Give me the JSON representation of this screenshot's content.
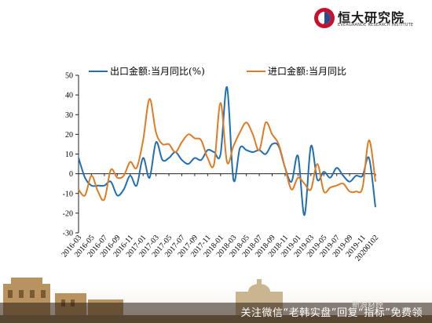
{
  "logo": {
    "name_cn": "恒大研究院",
    "name_en": "EVERGRANDE RESEARCH INSTITUTE"
  },
  "banner": {
    "text": "关注微信“老韩实盘”回复“指标”免费领",
    "watermark": "新浪财经"
  },
  "colors": {
    "export": "#1f6fb2",
    "import": "#e07b22",
    "axis": "#222222"
  },
  "chart_data": {
    "type": "line",
    "legend_position": "top",
    "grid": false,
    "ylim": [
      -30,
      50
    ],
    "yticks": [
      -30,
      -20,
      -10,
      0,
      10,
      20,
      30,
      40,
      50
    ],
    "xticklabels": [
      "2016-03",
      "2016-05",
      "2016-07",
      "2016-09",
      "2016-11",
      "2017-01",
      "2017-03",
      "2017-05",
      "2017-07",
      "2017-09",
      "2017-11",
      "2018-01",
      "2018-03",
      "2018-05",
      "2018-07",
      "2018-09",
      "2018-11",
      "2019-01",
      "2019-03",
      "2019-05",
      "2019-07",
      "2019-09",
      "2019-11",
      "20200102"
    ],
    "x": [
      "2016-03",
      "2016-04",
      "2016-05",
      "2016-06",
      "2016-07",
      "2016-08",
      "2016-09",
      "2016-10",
      "2016-11",
      "2016-12",
      "2017-01",
      "2017-02",
      "2017-03",
      "2017-04",
      "2017-05",
      "2017-06",
      "2017-07",
      "2017-08",
      "2017-09",
      "2017-10",
      "2017-11",
      "2017-12",
      "2018-01",
      "2018-02",
      "2018-03",
      "2018-04",
      "2018-05",
      "2018-06",
      "2018-07",
      "2018-08",
      "2018-09",
      "2018-10",
      "2018-11",
      "2018-12",
      "2019-01",
      "2019-02",
      "2019-03",
      "2019-04",
      "2019-05",
      "2019-06",
      "2019-07",
      "2019-08",
      "2019-09",
      "2019-10",
      "2019-11",
      "2019-12",
      "20200102"
    ],
    "series": [
      {
        "name": "出口金额:当月同比(%)",
        "color": "#1f6fb2",
        "values": [
          8,
          -2,
          -6,
          -6,
          -6,
          -4,
          -11,
          -8,
          -1,
          -6,
          8,
          -2,
          16,
          7,
          8,
          11,
          7,
          5,
          8,
          7,
          12,
          11,
          10,
          44,
          -3,
          13,
          12,
          11,
          12,
          10,
          15,
          14,
          3,
          -4,
          9,
          -21,
          14,
          -3,
          1,
          -2,
          3,
          -1,
          -4,
          -1,
          -1,
          8,
          -17
        ]
      },
      {
        "name": "进口金额:当月同比",
        "color": "#e07b22",
        "values": [
          -8,
          -11,
          -1,
          -9,
          -13,
          2,
          -2,
          -1,
          6,
          3,
          17,
          38,
          21,
          15,
          15,
          11,
          16,
          20,
          18,
          17,
          8,
          5,
          36,
          6,
          14,
          21,
          26,
          20,
          12,
          26,
          20,
          15,
          3,
          -8,
          -2,
          -5,
          -8,
          5,
          -9,
          -7,
          -6,
          -5,
          -9,
          -9,
          -7,
          17,
          -4
        ]
      }
    ]
  }
}
